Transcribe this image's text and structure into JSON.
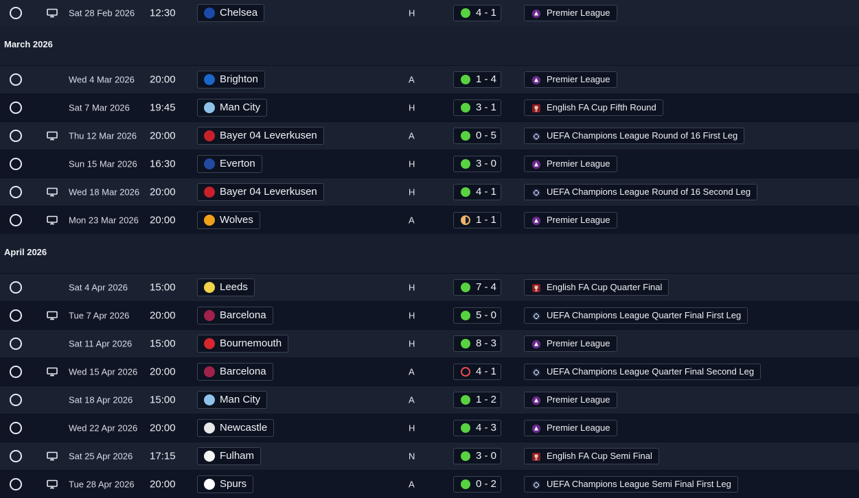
{
  "icons": {
    "radio": "radio-unselected-icon",
    "tv": "tv-icon",
    "result_win": "win-result-dot-icon",
    "result_draw": "draw-result-dot-icon",
    "result_loss": "loss-result-ring-icon",
    "premier_league": "premier-league-logo-icon",
    "fa_cup": "fa-cup-logo-icon",
    "champions_league": "champions-league-logo-icon"
  },
  "colors": {
    "win": "#58d240",
    "draw": "#f2b46a",
    "loss": "#e84c4c",
    "premier_league": "#6a2a8a",
    "fa_cup": "#8b1a24",
    "champions_league": "#1b2540"
  },
  "sections": [
    {
      "title": "",
      "fixtures": [
        {
          "tv": true,
          "date": "Sat 28 Feb 2026",
          "time": "12:30",
          "team": "Chelsea",
          "crest": "#1b4aa8",
          "venue": "H",
          "result": "w",
          "score": "4 - 1",
          "comp": "Premier League",
          "comp_type": "pl"
        }
      ]
    },
    {
      "title": "March 2026",
      "fixtures": [
        {
          "tv": false,
          "date": "Wed 4 Mar 2026",
          "time": "20:00",
          "team": "Brighton",
          "crest": "#1a66c9",
          "venue": "A",
          "result": "w",
          "score": "1 - 4",
          "comp": "Premier League",
          "comp_type": "pl"
        },
        {
          "tv": false,
          "date": "Sat 7 Mar 2026",
          "time": "19:45",
          "team": "Man City",
          "crest": "#8fc2e8",
          "venue": "H",
          "result": "w",
          "score": "3 - 1",
          "comp": "English FA Cup Fifth Round",
          "comp_type": "fa"
        },
        {
          "tv": true,
          "date": "Thu 12 Mar 2026",
          "time": "20:00",
          "team": "Bayer 04 Leverkusen",
          "crest": "#c8202a",
          "venue": "A",
          "result": "w",
          "score": "0 - 5",
          "comp": "UEFA Champions League Round of 16  First Leg",
          "comp_type": "cl"
        },
        {
          "tv": false,
          "date": "Sun 15 Mar 2026",
          "time": "16:30",
          "team": "Everton",
          "crest": "#2349a0",
          "venue": "H",
          "result": "w",
          "score": "3 - 0",
          "comp": "Premier League",
          "comp_type": "pl"
        },
        {
          "tv": true,
          "date": "Wed 18 Mar 2026",
          "time": "20:00",
          "team": "Bayer 04 Leverkusen",
          "crest": "#c8202a",
          "venue": "H",
          "result": "w",
          "score": "4 - 1",
          "comp": "UEFA Champions League Round of 16  Second Leg",
          "comp_type": "cl"
        },
        {
          "tv": true,
          "date": "Mon 23 Mar 2026",
          "time": "20:00",
          "team": "Wolves",
          "crest": "#f0a01a",
          "venue": "A",
          "result": "d",
          "score": "1 - 1",
          "comp": "Premier League",
          "comp_type": "pl"
        }
      ]
    },
    {
      "title": "April 2026",
      "fixtures": [
        {
          "tv": false,
          "date": "Sat 4 Apr 2026",
          "time": "15:00",
          "team": "Leeds",
          "crest": "#f0d34a",
          "venue": "H",
          "result": "w",
          "score": "7 - 4",
          "comp": "English FA Cup Quarter Final",
          "comp_type": "fa"
        },
        {
          "tv": true,
          "date": "Tue 7 Apr 2026",
          "time": "20:00",
          "team": "Barcelona",
          "crest": "#a0224a",
          "venue": "H",
          "result": "w",
          "score": "5 - 0",
          "comp": "UEFA Champions League Quarter Final First Leg",
          "comp_type": "cl"
        },
        {
          "tv": false,
          "date": "Sat 11 Apr 2026",
          "time": "15:00",
          "team": "Bournemouth",
          "crest": "#d8262e",
          "venue": "H",
          "result": "w",
          "score": "8 - 3",
          "comp": "Premier League",
          "comp_type": "pl"
        },
        {
          "tv": true,
          "date": "Wed 15 Apr 2026",
          "time": "20:00",
          "team": "Barcelona",
          "crest": "#a0224a",
          "venue": "A",
          "result": "l",
          "score": "4 - 1",
          "comp": "UEFA Champions League Quarter Final Second Leg",
          "comp_type": "cl"
        },
        {
          "tv": false,
          "date": "Sat 18 Apr 2026",
          "time": "15:00",
          "team": "Man City",
          "crest": "#8fc2e8",
          "venue": "A",
          "result": "w",
          "score": "1 - 2",
          "comp": "Premier League",
          "comp_type": "pl"
        },
        {
          "tv": false,
          "date": "Wed 22 Apr 2026",
          "time": "20:00",
          "team": "Newcastle",
          "crest": "#e8e8e8",
          "venue": "H",
          "result": "w",
          "score": "4 - 3",
          "comp": "Premier League",
          "comp_type": "pl"
        },
        {
          "tv": true,
          "date": "Sat 25 Apr 2026",
          "time": "17:15",
          "team": "Fulham",
          "crest": "#f4f4f4",
          "venue": "N",
          "result": "w",
          "score": "3 - 0",
          "comp": "English FA Cup Semi Final",
          "comp_type": "fa"
        },
        {
          "tv": true,
          "date": "Tue 28 Apr 2026",
          "time": "20:00",
          "team": "Spurs",
          "crest": "#ffffff",
          "venue": "A",
          "result": "w",
          "score": "0 - 2",
          "comp": "UEFA Champions League Semi Final First Leg",
          "comp_type": "cl"
        }
      ]
    }
  ]
}
